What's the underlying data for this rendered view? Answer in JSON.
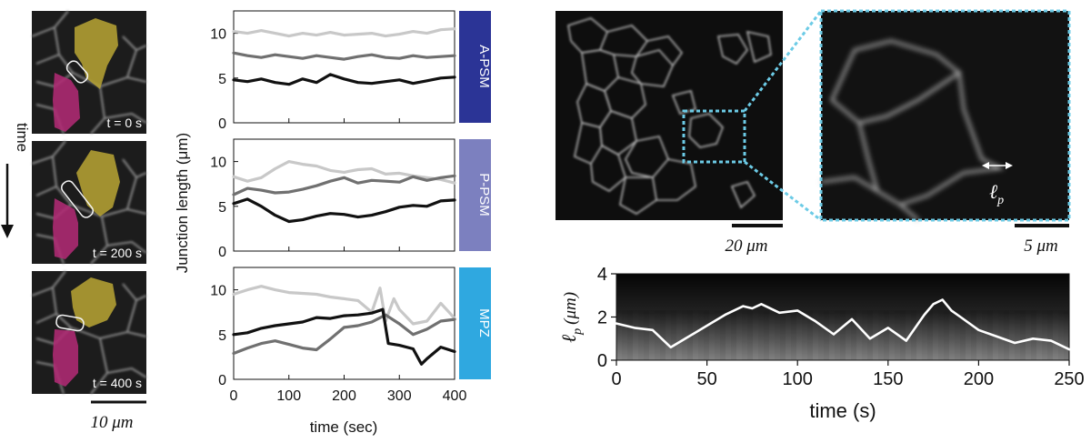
{
  "left_panel": {
    "time_axis_label": "time",
    "frame_labels": [
      "t = 0 s",
      "t = 200 s",
      "t = 400 s"
    ],
    "scalebar_label": "10 μm",
    "colors": {
      "yellow_cell": "#b5a233",
      "magenta_cell": "#b02a74"
    }
  },
  "middle_panel": {
    "ylabel": "Junction length (μm)",
    "xlabel": "time (sec)",
    "x_ticks": [
      "0",
      "100",
      "200",
      "300",
      "400"
    ],
    "y_ticks": [
      "0",
      "5",
      "10"
    ],
    "region_labels": [
      "A-PSM",
      "P-PSM",
      "MPZ"
    ],
    "region_colors": [
      "#2b3496",
      "#7c80bf",
      "#2fa8e0"
    ]
  },
  "micrograph": {
    "scalebar_main": "20 μm",
    "scalebar_zoom": "5 μm",
    "lp_label": "ℓ",
    "lp_sub": "p",
    "box_color": "#6ccbe6"
  },
  "kymograph": {
    "ylabel_symbol": "ℓ",
    "ylabel_sub": "p",
    "ylabel_unit": "(μm)",
    "xlabel": "time (s)",
    "x_ticks": [
      "0",
      "50",
      "100",
      "150",
      "200",
      "250"
    ],
    "y_ticks": [
      "0",
      "2",
      "4"
    ]
  },
  "chart_data": [
    {
      "type": "line",
      "panel": "A-PSM",
      "xlim": [
        0,
        400
      ],
      "ylim": [
        0,
        12.5
      ],
      "series": [
        {
          "color": "#c8c8c8",
          "x": [
            0,
            25,
            50,
            75,
            100,
            125,
            150,
            175,
            200,
            225,
            250,
            275,
            300,
            325,
            350,
            375,
            400
          ],
          "y": [
            10.2,
            10.0,
            10.3,
            10.0,
            9.7,
            10.0,
            9.8,
            10.1,
            9.8,
            9.9,
            10.0,
            9.7,
            9.9,
            10.2,
            10.0,
            10.4,
            10.5
          ]
        },
        {
          "color": "#707070",
          "x": [
            0,
            25,
            50,
            75,
            100,
            125,
            150,
            175,
            200,
            225,
            250,
            275,
            300,
            325,
            350,
            375,
            400
          ],
          "y": [
            7.8,
            7.5,
            7.3,
            7.6,
            7.4,
            7.2,
            7.5,
            7.3,
            7.1,
            7.4,
            7.6,
            7.3,
            7.2,
            7.5,
            7.3,
            7.4,
            7.5
          ]
        },
        {
          "color": "#111111",
          "x": [
            0,
            25,
            50,
            75,
            100,
            125,
            150,
            175,
            200,
            225,
            250,
            275,
            300,
            325,
            350,
            375,
            400
          ],
          "y": [
            4.8,
            4.6,
            4.9,
            4.5,
            4.3,
            4.9,
            4.5,
            5.4,
            4.9,
            4.5,
            4.4,
            4.6,
            4.8,
            4.4,
            4.7,
            5.0,
            5.1
          ]
        }
      ]
    },
    {
      "type": "line",
      "panel": "P-PSM",
      "xlim": [
        0,
        400
      ],
      "ylim": [
        0,
        12.5
      ],
      "series": [
        {
          "color": "#c8c8c8",
          "x": [
            0,
            25,
            50,
            75,
            100,
            125,
            150,
            175,
            200,
            225,
            250,
            275,
            300,
            325,
            350,
            375,
            400
          ],
          "y": [
            8.3,
            7.8,
            8.2,
            9.2,
            10.0,
            9.7,
            9.5,
            9.0,
            8.8,
            9.1,
            9.2,
            8.6,
            8.7,
            8.4,
            8.2,
            8.0,
            7.6
          ]
        },
        {
          "color": "#707070",
          "x": [
            0,
            25,
            50,
            75,
            100,
            125,
            150,
            175,
            200,
            225,
            250,
            275,
            300,
            325,
            350,
            375,
            400
          ],
          "y": [
            6.3,
            7.0,
            6.8,
            6.5,
            6.6,
            6.9,
            7.3,
            7.8,
            8.2,
            7.6,
            7.9,
            7.8,
            7.7,
            8.3,
            7.9,
            8.2,
            8.4
          ]
        },
        {
          "color": "#111111",
          "x": [
            0,
            25,
            50,
            75,
            100,
            125,
            150,
            175,
            200,
            225,
            250,
            275,
            300,
            325,
            350,
            375,
            400
          ],
          "y": [
            5.3,
            5.8,
            5.0,
            4.0,
            3.3,
            3.5,
            3.9,
            4.2,
            4.1,
            3.8,
            4.0,
            4.4,
            4.9,
            5.1,
            5.0,
            5.6,
            5.7
          ]
        }
      ]
    },
    {
      "type": "line",
      "panel": "MPZ",
      "xlim": [
        0,
        400
      ],
      "ylim": [
        0,
        12.5
      ],
      "series": [
        {
          "color": "#c8c8c8",
          "x": [
            0,
            25,
            50,
            75,
            100,
            125,
            150,
            175,
            200,
            225,
            250,
            265,
            275,
            290,
            300,
            325,
            350,
            375,
            390,
            400
          ],
          "y": [
            9.5,
            10.0,
            10.4,
            10.0,
            9.7,
            9.6,
            9.5,
            9.2,
            9.0,
            8.8,
            7.5,
            10.2,
            6.5,
            9.0,
            7.8,
            6.2,
            6.5,
            8.5,
            7.5,
            6.8
          ]
        },
        {
          "color": "#707070",
          "x": [
            0,
            25,
            50,
            75,
            100,
            125,
            150,
            175,
            200,
            225,
            250,
            275,
            300,
            325,
            350,
            375,
            400
          ],
          "y": [
            2.9,
            3.5,
            4.0,
            4.3,
            3.9,
            3.5,
            3.3,
            4.5,
            5.8,
            6.0,
            6.4,
            7.2,
            6.2,
            5.0,
            5.6,
            6.5,
            6.7
          ]
        },
        {
          "color": "#111111",
          "x": [
            0,
            25,
            50,
            75,
            100,
            125,
            150,
            175,
            200,
            225,
            250,
            270,
            280,
            300,
            325,
            340,
            350,
            375,
            400
          ],
          "y": [
            5.0,
            5.2,
            5.7,
            6.0,
            6.2,
            6.4,
            6.9,
            6.8,
            7.1,
            7.2,
            7.4,
            7.8,
            4.0,
            3.8,
            3.4,
            1.7,
            2.3,
            3.6,
            3.1
          ]
        }
      ]
    },
    {
      "type": "line",
      "panel": "kymograph",
      "xlim": [
        0,
        250
      ],
      "ylim": [
        0,
        4
      ],
      "series": [
        {
          "color": "#ffffff",
          "x": [
            0,
            10,
            20,
            30,
            40,
            50,
            60,
            70,
            75,
            80,
            90,
            100,
            110,
            120,
            130,
            140,
            150,
            160,
            170,
            175,
            180,
            185,
            190,
            200,
            210,
            220,
            230,
            240,
            250
          ],
          "y": [
            1.7,
            1.5,
            1.4,
            0.6,
            1.1,
            1.6,
            2.1,
            2.5,
            2.4,
            2.6,
            2.2,
            2.3,
            1.8,
            1.2,
            1.9,
            1.0,
            1.5,
            0.9,
            2.1,
            2.6,
            2.8,
            2.3,
            2.0,
            1.4,
            1.1,
            0.8,
            1.0,
            0.9,
            0.5
          ]
        }
      ]
    }
  ]
}
